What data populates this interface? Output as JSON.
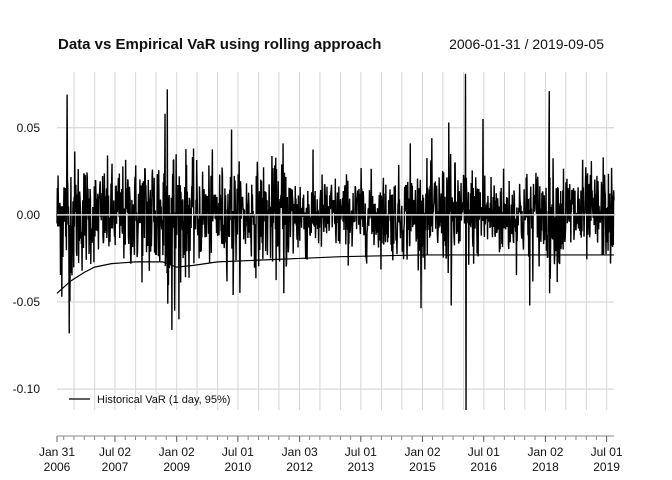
{
  "chart_data": {
    "type": "line",
    "title": "Data vs Empirical VaR using rolling approach",
    "date_range": "2006-01-31 / 2019-09-05",
    "xlabel": "",
    "ylabel": "",
    "x_range": [
      "2006-01-31",
      "2019-09-05"
    ],
    "ylim": [
      -0.112,
      0.082
    ],
    "grid": true,
    "legend_position": "bottom-left",
    "y_ticks": [
      {
        "value": 0.05,
        "label": "0.05"
      },
      {
        "value": 0.0,
        "label": "0.00"
      },
      {
        "value": -0.05,
        "label": "-0.05"
      },
      {
        "value": -0.1,
        "label": "-0.10"
      }
    ],
    "x_ticks": [
      {
        "date": "2006-01-31",
        "label1": "Jan 31",
        "label2": "2006"
      },
      {
        "date": "2007-07-02",
        "label1": "Jul 02",
        "label2": "2007"
      },
      {
        "date": "2009-01-02",
        "label1": "Jan 02",
        "label2": "2009"
      },
      {
        "date": "2010-07-01",
        "label1": "Jul 01",
        "label2": "2010"
      },
      {
        "date": "2012-01-03",
        "label1": "Jan 03",
        "label2": "2012"
      },
      {
        "date": "2013-07-01",
        "label1": "Jul 01",
        "label2": "2013"
      },
      {
        "date": "2015-01-02",
        "label1": "Jan 02",
        "label2": "2015"
      },
      {
        "date": "2016-07-01",
        "label1": "Jul 01",
        "label2": "2016"
      },
      {
        "date": "2018-01-02",
        "label1": "Jan 02",
        "label2": "2018"
      },
      {
        "date": "2019-07-01",
        "label1": "Jul 01",
        "label2": "2019"
      }
    ],
    "series": [
      {
        "role": "returns",
        "color": "#000000",
        "volatility": [
          {
            "date": "2006-01-31",
            "sd": 0.016
          },
          {
            "date": "2006-06-01",
            "sd": 0.019
          },
          {
            "date": "2007-01-01",
            "sd": 0.013
          },
          {
            "date": "2008-01-01",
            "sd": 0.015
          },
          {
            "date": "2008-10-01",
            "sd": 0.024
          },
          {
            "date": "2009-06-01",
            "sd": 0.014
          },
          {
            "date": "2010-06-01",
            "sd": 0.013
          },
          {
            "date": "2011-09-01",
            "sd": 0.015
          },
          {
            "date": "2012-06-01",
            "sd": 0.011
          },
          {
            "date": "2014-01-01",
            "sd": 0.011
          },
          {
            "date": "2015-09-01",
            "sd": 0.015
          },
          {
            "date": "2016-06-01",
            "sd": 0.013
          },
          {
            "date": "2017-06-01",
            "sd": 0.012
          },
          {
            "date": "2018-03-01",
            "sd": 0.015
          },
          {
            "date": "2019-09-05",
            "sd": 0.012
          }
        ],
        "extremes": [
          {
            "date": "2006-05-01",
            "value": 0.069
          },
          {
            "date": "2006-05-20",
            "value": -0.068
          },
          {
            "date": "2006-03-15",
            "value": -0.047
          },
          {
            "date": "2008-10-10",
            "value": 0.072
          },
          {
            "date": "2008-11-20",
            "value": -0.066
          },
          {
            "date": "2008-09-20",
            "value": 0.058
          },
          {
            "date": "2008-12-15",
            "value": -0.055
          },
          {
            "date": "2010-05-06",
            "value": 0.049
          },
          {
            "date": "2010-05-20",
            "value": -0.046
          },
          {
            "date": "2011-08-08",
            "value": 0.041
          },
          {
            "date": "2011-08-15",
            "value": -0.045
          },
          {
            "date": "2014-09-15",
            "value": 0.041
          },
          {
            "date": "2015-08-24",
            "value": 0.053
          },
          {
            "date": "2015-09-15",
            "value": -0.052
          },
          {
            "date": "2016-01-20",
            "value": 0.081
          },
          {
            "date": "2016-01-25",
            "value": -0.112
          },
          {
            "date": "2016-06-24",
            "value": 0.055
          },
          {
            "date": "2017-08-15",
            "value": -0.052
          },
          {
            "date": "2018-02-05",
            "value": 0.071
          },
          {
            "date": "2018-02-08",
            "value": -0.045
          },
          {
            "date": "2019-06-01",
            "value": 0.033
          },
          {
            "date": "2019-08-05",
            "value": -0.028
          }
        ]
      },
      {
        "name": "Historical VaR (1 day, 95%)",
        "color": "#000000",
        "points": [
          {
            "date": "2006-01-31",
            "value": -0.045
          },
          {
            "date": "2006-06-01",
            "value": -0.038
          },
          {
            "date": "2006-10-01",
            "value": -0.033
          },
          {
            "date": "2007-01-01",
            "value": -0.03
          },
          {
            "date": "2007-06-01",
            "value": -0.028
          },
          {
            "date": "2008-01-01",
            "value": -0.027
          },
          {
            "date": "2008-09-01",
            "value": -0.027
          },
          {
            "date": "2009-01-01",
            "value": -0.03
          },
          {
            "date": "2009-06-01",
            "value": -0.029
          },
          {
            "date": "2010-01-01",
            "value": -0.027
          },
          {
            "date": "2011-01-01",
            "value": -0.026
          },
          {
            "date": "2012-01-01",
            "value": -0.025
          },
          {
            "date": "2013-01-01",
            "value": -0.024
          },
          {
            "date": "2015-01-01",
            "value": -0.023
          },
          {
            "date": "2017-01-01",
            "value": -0.023
          },
          {
            "date": "2019-09-05",
            "value": -0.023
          }
        ]
      }
    ]
  }
}
